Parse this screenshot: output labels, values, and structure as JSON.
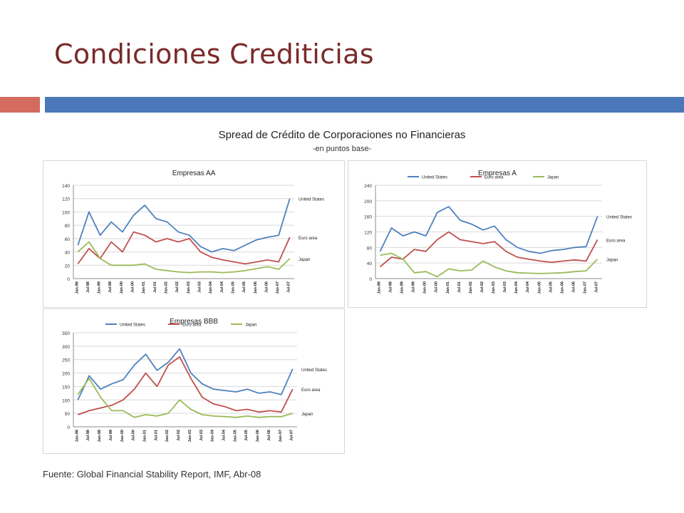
{
  "slide": {
    "title": "Condiciones Crediticias",
    "accent_colors": {
      "left_bar": "#d46b5f",
      "right_bar": "#4a78b8",
      "title": "#7a2a2a"
    },
    "figure_title": "Spread de Crédito de Corporaciones no Financieras",
    "figure_subtitle": "-en puntos base-",
    "source": "Fuente: Global Financial Stability Report, IMF, Abr-08"
  },
  "chart_data": [
    {
      "id": "aa",
      "type": "line",
      "title": "Empresas AA",
      "legend": "none",
      "grid": true,
      "ylim": [
        0,
        140
      ],
      "yticks": [
        0,
        20,
        40,
        60,
        80,
        100,
        120,
        140
      ],
      "x": [
        0,
        0.5,
        1,
        1.5,
        2,
        2.5,
        3,
        3.5,
        4,
        4.5,
        5,
        5.5,
        6,
        6.5,
        7,
        7.5,
        8,
        8.5,
        9,
        9.5
      ],
      "xlim": [
        -0.2,
        9.7
      ],
      "xticklabels": [
        {
          "x": 0,
          "label": "Jan-98"
        },
        {
          "x": 0.5,
          "label": "Jul-98"
        },
        {
          "x": 1,
          "label": "Jan-99"
        },
        {
          "x": 1.5,
          "label": "Jul-99"
        },
        {
          "x": 2,
          "label": "Jan-00"
        },
        {
          "x": 2.5,
          "label": "Jul-00"
        },
        {
          "x": 3,
          "label": "Jan-01"
        },
        {
          "x": 3.5,
          "label": "Jul-01"
        },
        {
          "x": 4,
          "label": "Jan-02"
        },
        {
          "x": 4.5,
          "label": "Jul-02"
        },
        {
          "x": 5,
          "label": "Jan-03"
        },
        {
          "x": 5.5,
          "label": "Jul-03"
        },
        {
          "x": 6,
          "label": "Jan-04"
        },
        {
          "x": 6.5,
          "label": "Jul-04"
        },
        {
          "x": 7,
          "label": "Jan-05"
        },
        {
          "x": 7.5,
          "label": "Jul-05"
        },
        {
          "x": 8,
          "label": "Jan-06"
        },
        {
          "x": 8.5,
          "label": "Jul-06"
        },
        {
          "x": 9,
          "label": "Jan-07"
        },
        {
          "x": 9.5,
          "label": "Jul-07"
        }
      ],
      "series": [
        {
          "name": "United States",
          "color": "#4f81bd",
          "values": [
            50,
            100,
            65,
            85,
            70,
            95,
            110,
            90,
            85,
            70,
            65,
            48,
            40,
            45,
            42,
            50,
            58,
            62,
            65,
            120
          ]
        },
        {
          "name": "Euro area",
          "color": "#c0504d",
          "values": [
            22,
            45,
            30,
            55,
            40,
            70,
            65,
            55,
            60,
            55,
            60,
            40,
            32,
            28,
            25,
            22,
            25,
            28,
            25,
            62
          ]
        },
        {
          "name": "Japan",
          "color": "#9bbb59",
          "values": [
            40,
            55,
            30,
            20,
            20,
            20,
            22,
            14,
            12,
            10,
            9,
            10,
            10,
            9,
            10,
            12,
            15,
            18,
            14,
            30
          ]
        }
      ]
    },
    {
      "id": "a",
      "type": "line",
      "title": "Empresas A",
      "legend": "top",
      "grid": true,
      "ylim": [
        0,
        240
      ],
      "yticks": [
        0,
        40,
        80,
        120,
        160,
        200,
        240
      ],
      "x": [
        0,
        0.5,
        1,
        1.5,
        2,
        2.5,
        3,
        3.5,
        4,
        4.5,
        5,
        5.5,
        6,
        6.5,
        7,
        7.5,
        8,
        8.5,
        9,
        9.5
      ],
      "xlim": [
        -0.2,
        9.7
      ],
      "xticklabels": [
        {
          "x": 0,
          "label": "Jan-98"
        },
        {
          "x": 0.5,
          "label": "Jul-98"
        },
        {
          "x": 1,
          "label": "Jan-99"
        },
        {
          "x": 1.5,
          "label": "Jul-99"
        },
        {
          "x": 2,
          "label": "Jan-00"
        },
        {
          "x": 2.5,
          "label": "Jul-00"
        },
        {
          "x": 3,
          "label": "Jan-01"
        },
        {
          "x": 3.5,
          "label": "Jul-01"
        },
        {
          "x": 4,
          "label": "Jan-02"
        },
        {
          "x": 4.5,
          "label": "Jul-02"
        },
        {
          "x": 5,
          "label": "Jan-03"
        },
        {
          "x": 5.5,
          "label": "Jul-03"
        },
        {
          "x": 6,
          "label": "Jan-04"
        },
        {
          "x": 6.5,
          "label": "Jul-04"
        },
        {
          "x": 7,
          "label": "Jan-05"
        },
        {
          "x": 7.5,
          "label": "Jul-05"
        },
        {
          "x": 8,
          "label": "Jan-06"
        },
        {
          "x": 8.5,
          "label": "Jul-06"
        },
        {
          "x": 9,
          "label": "Jan-07"
        },
        {
          "x": 9.5,
          "label": "Jul-07"
        }
      ],
      "series": [
        {
          "name": "United States",
          "color": "#4f81bd",
          "values": [
            70,
            130,
            110,
            120,
            110,
            170,
            185,
            150,
            140,
            125,
            135,
            100,
            80,
            70,
            65,
            72,
            75,
            80,
            82,
            160
          ]
        },
        {
          "name": "Euro area",
          "color": "#c0504d",
          "values": [
            30,
            55,
            50,
            75,
            70,
            100,
            120,
            100,
            95,
            90,
            95,
            70,
            55,
            50,
            45,
            42,
            45,
            48,
            45,
            100
          ]
        },
        {
          "name": "Japan",
          "color": "#9bbb59",
          "values": [
            60,
            65,
            50,
            15,
            18,
            5,
            25,
            20,
            22,
            45,
            30,
            20,
            15,
            14,
            13,
            14,
            15,
            18,
            20,
            50
          ]
        }
      ]
    },
    {
      "id": "bbb",
      "type": "line",
      "title": "Empresas BBB",
      "legend": "top",
      "grid": true,
      "ylim": [
        0,
        350
      ],
      "yticks": [
        0,
        50,
        100,
        150,
        200,
        250,
        300,
        350
      ],
      "x": [
        0,
        0.5,
        1,
        1.5,
        2,
        2.5,
        3,
        3.5,
        4,
        4.5,
        5,
        5.5,
        6,
        6.5,
        7,
        7.5,
        8,
        8.5,
        9,
        9.5
      ],
      "xlim": [
        -0.2,
        9.7
      ],
      "xticklabels": [
        {
          "x": 0,
          "label": "Jan-98"
        },
        {
          "x": 0.5,
          "label": "Jul-98"
        },
        {
          "x": 1,
          "label": "Jan-99"
        },
        {
          "x": 1.5,
          "label": "Jul-99"
        },
        {
          "x": 2,
          "label": "Jan-00"
        },
        {
          "x": 2.5,
          "label": "Jul-00"
        },
        {
          "x": 3,
          "label": "Jan-01"
        },
        {
          "x": 3.5,
          "label": "Jul-01"
        },
        {
          "x": 4,
          "label": "Jan-02"
        },
        {
          "x": 4.5,
          "label": "Jul-02"
        },
        {
          "x": 5,
          "label": "Jan-03"
        },
        {
          "x": 5.5,
          "label": "Jul-03"
        },
        {
          "x": 6,
          "label": "Jan-04"
        },
        {
          "x": 6.5,
          "label": "Jul-04"
        },
        {
          "x": 7,
          "label": "Jan-05"
        },
        {
          "x": 7.5,
          "label": "Jul-05"
        },
        {
          "x": 8,
          "label": "Jan-06"
        },
        {
          "x": 8.5,
          "label": "Jul-06"
        },
        {
          "x": 9,
          "label": "Jan-07"
        },
        {
          "x": 9.5,
          "label": "Jul-07"
        }
      ],
      "series": [
        {
          "name": "United States",
          "color": "#4f81bd",
          "values": [
            100,
            190,
            140,
            160,
            175,
            230,
            270,
            210,
            240,
            290,
            200,
            160,
            140,
            135,
            130,
            140,
            125,
            130,
            120,
            215
          ]
        },
        {
          "name": "Euro area",
          "color": "#c0504d",
          "values": [
            45,
            60,
            70,
            80,
            100,
            140,
            200,
            150,
            230,
            260,
            180,
            110,
            85,
            75,
            60,
            65,
            55,
            60,
            55,
            140
          ]
        },
        {
          "name": "Japan",
          "color": "#9bbb59",
          "values": [
            120,
            180,
            110,
            60,
            60,
            35,
            45,
            40,
            50,
            100,
            65,
            45,
            40,
            38,
            35,
            40,
            35,
            38,
            38,
            50
          ]
        }
      ]
    }
  ]
}
